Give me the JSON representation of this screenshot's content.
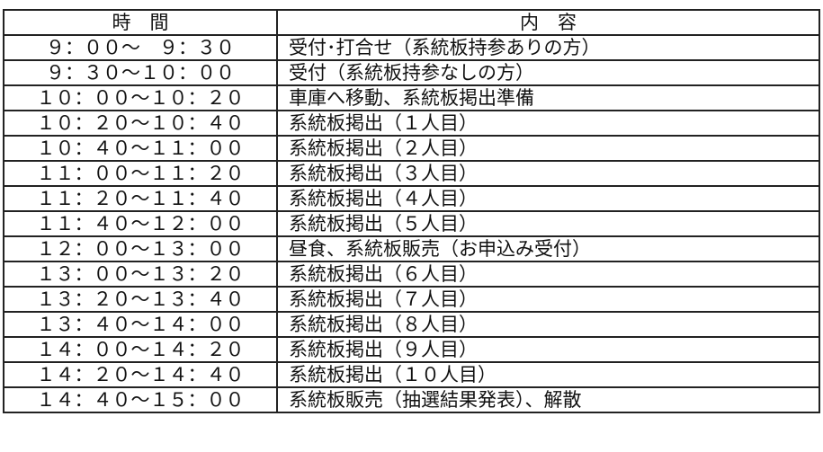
{
  "header": {
    "time": "時　間",
    "content": "内　容"
  },
  "rows": [
    {
      "time": "９：００～　９：３０",
      "content": "受付･打合せ（系統板持参ありの方）"
    },
    {
      "time": "９：３０～１０：００",
      "content": "受付（系統板持参なしの方）"
    },
    {
      "time": "１０：００～１０：２０",
      "content": "車庫へ移動、系統板掲出準備"
    },
    {
      "time": "１０：２０～１０：４０",
      "content": "系統板掲出（１人目）"
    },
    {
      "time": "１０：４０～１１：００",
      "content": "系統板掲出（２人目）"
    },
    {
      "time": "１１：００～１１：２０",
      "content": "系統板掲出（３人目）"
    },
    {
      "time": "１１：２０～１１：４０",
      "content": "系統板掲出（４人目）"
    },
    {
      "time": "１１：４０～１２：００",
      "content": "系統板掲出（５人目）"
    },
    {
      "time": "１２：００～１３：００",
      "content": "昼食、系統板販売（お申込み受付）"
    },
    {
      "time": "１３：００～１３：２０",
      "content": "系統板掲出（６人目）"
    },
    {
      "time": "１３：２０～１３：４０",
      "content": "系統板掲出（７人目）"
    },
    {
      "time": "１３：４０～１４：００",
      "content": "系統板掲出（８人目）"
    },
    {
      "time": "１４：００～１４：２０",
      "content": "系統板掲出（９人目）"
    },
    {
      "time": "１４：２０～１４：４０",
      "content": "系統板掲出（１０人目）"
    },
    {
      "time": "１４：４０～１５：００",
      "content": "系統板販売（抽選結果発表）、解散"
    }
  ]
}
